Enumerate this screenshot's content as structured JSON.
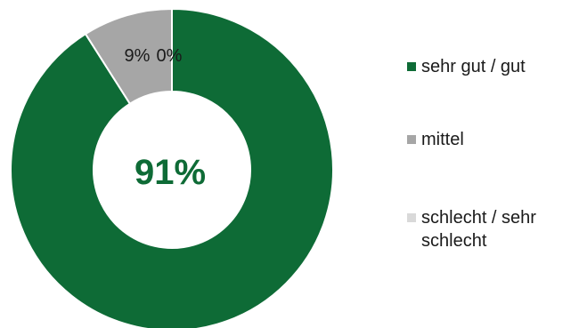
{
  "chart_data": {
    "type": "pie",
    "variant": "donut",
    "title": "",
    "center_label": "91%",
    "categories": [
      "sehr gut / gut",
      "mittel",
      "schlecht / sehr schlecht"
    ],
    "values": [
      91,
      9,
      0
    ],
    "data_labels": [
      "",
      "9%",
      "0%"
    ],
    "colors": [
      "#0e6b36",
      "#a6a6a6",
      "#d9d9d9"
    ],
    "legend_position": "right"
  }
}
